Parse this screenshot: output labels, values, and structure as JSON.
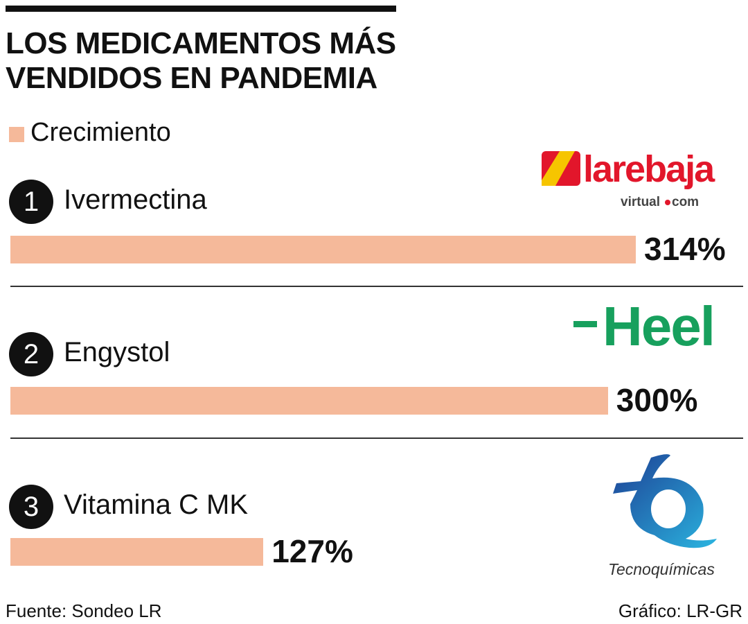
{
  "chart_data": {
    "type": "bar",
    "orientation": "horizontal",
    "title": "LOS MEDICAMENTOS MÁS VENDIDOS EN PANDEMIA",
    "title_lines": [
      "LOS MEDICAMENTOS MÁS",
      "VENDIDOS EN PANDEMIA"
    ],
    "legend": "Crecimiento",
    "ranks": [
      "1",
      "2",
      "3"
    ],
    "categories": [
      "Ivermectina",
      "Engystol",
      "Vitamina C MK"
    ],
    "values": [
      314,
      300,
      127
    ],
    "value_labels": [
      "314%",
      "300%",
      "127%"
    ],
    "unit": "%",
    "xlim": [
      0,
      314
    ],
    "logos": [
      "larebaja virtual.com",
      "Heel",
      "Tecnoquímicas"
    ],
    "bar_color": "#f5b99a"
  },
  "footer": {
    "source": "Fuente: Sondeo LR",
    "credit": "Gráfico: LR-GR"
  }
}
